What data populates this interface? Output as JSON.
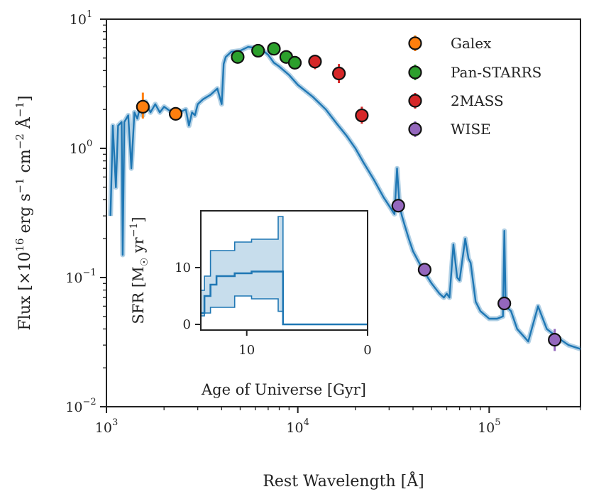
{
  "chart_data": [
    {
      "type": "line",
      "title": "",
      "xlabel": "Rest Wavelength [Å]",
      "ylabel": "Flux [×10^16 erg s^-1 cm^-2 Å^-1]",
      "xscale": "log",
      "yscale": "log",
      "xlim": [
        1000,
        300000
      ],
      "ylim": [
        0.01,
        10
      ],
      "x_ticks": [
        {
          "base": "10",
          "exp": "3",
          "value": 1000
        },
        {
          "base": "10",
          "exp": "4",
          "value": 10000
        },
        {
          "base": "10",
          "exp": "5",
          "value": 100000
        }
      ],
      "y_ticks": [
        {
          "base": "10",
          "exp": "−2",
          "value": 0.01
        },
        {
          "base": "10",
          "exp": "−1",
          "value": 0.1
        },
        {
          "base": "10",
          "exp": "0",
          "value": 1
        },
        {
          "base": "10",
          "exp": "1",
          "value": 10
        }
      ],
      "model_color": "#1f77b4",
      "model_sed": {
        "x": [
          1050,
          1080,
          1120,
          1150,
          1200,
          1216,
          1240,
          1300,
          1350,
          1400,
          1450,
          1500,
          1550,
          1600,
          1700,
          1800,
          1900,
          2000,
          2200,
          2400,
          2600,
          2700,
          2800,
          2900,
          3000,
          3200,
          3500,
          3800,
          4000,
          4100,
          4200,
          4500,
          5000,
          5500,
          6000,
          6500,
          7000,
          7500,
          8000,
          9000,
          10000,
          12000,
          14000,
          16000,
          18000,
          20000,
          22000,
          25000,
          28000,
          30000,
          32000,
          33000,
          34000,
          35000,
          36000,
          38000,
          40000,
          45000,
          50000,
          55000,
          58000,
          60000,
          62000,
          65000,
          68000,
          70000,
          75000,
          78000,
          80000,
          85000,
          90000,
          100000,
          110000,
          118000,
          120000,
          122000,
          130000,
          140000,
          160000,
          180000,
          200000,
          230000,
          260000,
          300000
        ],
        "y": [
          0.3,
          1.5,
          0.5,
          1.5,
          1.6,
          0.15,
          1.6,
          1.8,
          0.7,
          1.9,
          1.7,
          2.1,
          1.8,
          2.3,
          1.9,
          2.2,
          1.9,
          2.1,
          1.9,
          1.9,
          2.0,
          1.5,
          1.9,
          1.8,
          2.2,
          2.4,
          2.6,
          2.9,
          2.2,
          4.5,
          5.1,
          5.6,
          5.7,
          6.1,
          6.0,
          5.8,
          5.3,
          4.6,
          4.3,
          3.7,
          3.1,
          2.5,
          2.0,
          1.55,
          1.25,
          1.0,
          0.78,
          0.57,
          0.42,
          0.36,
          0.31,
          0.7,
          0.36,
          0.3,
          0.26,
          0.2,
          0.16,
          0.115,
          0.09,
          0.075,
          0.07,
          0.075,
          0.07,
          0.18,
          0.1,
          0.095,
          0.2,
          0.14,
          0.13,
          0.065,
          0.055,
          0.048,
          0.048,
          0.05,
          0.23,
          0.06,
          0.055,
          0.04,
          0.032,
          0.06,
          0.04,
          0.034,
          0.03,
          0.028
        ]
      },
      "series": [
        {
          "name": "Galex",
          "color": "#ff7f0e",
          "x": [
            1550,
            2300
          ],
          "y": [
            2.1,
            1.85
          ],
          "err_low": [
            1.7,
            1.75
          ],
          "err_high": [
            2.7,
            1.95
          ]
        },
        {
          "name": "Pan-STARRS",
          "color": "#2ca02c",
          "x": [
            4850,
            6200,
            7500,
            8700,
            9650
          ],
          "y": [
            5.1,
            5.7,
            5.9,
            5.1,
            4.6
          ],
          "err_low": [
            4.95,
            5.55,
            5.75,
            4.95,
            4.45
          ],
          "err_high": [
            5.25,
            5.85,
            6.05,
            5.25,
            4.75
          ]
        },
        {
          "name": "2MASS",
          "color": "#d62728",
          "x": [
            12300,
            16400,
            21600
          ],
          "y": [
            4.7,
            3.8,
            1.8
          ],
          "err_low": [
            4.1,
            3.2,
            1.55
          ],
          "err_high": [
            5.3,
            4.5,
            2.1
          ]
        },
        {
          "name": "WISE",
          "color": "#9467bd",
          "x": [
            33500,
            46000,
            120000,
            220000
          ],
          "y": [
            0.36,
            0.115,
            0.063,
            0.033
          ],
          "err_low": [
            0.34,
            0.11,
            0.058,
            0.027
          ],
          "err_high": [
            0.38,
            0.12,
            0.068,
            0.04
          ]
        }
      ],
      "legend_position": "top-right"
    },
    {
      "type": "line",
      "title": "",
      "xlabel": "Age of Universe [Gyr]",
      "ylabel": "SFR [M☉ yr^-1]",
      "xlim": [
        13.8,
        0
      ],
      "ylim": [
        -1,
        20
      ],
      "x_ticks": [
        "10",
        "0"
      ],
      "x_tick_values": [
        10,
        0
      ],
      "y_ticks": [
        "0",
        "10"
      ],
      "y_tick_values": [
        0,
        10
      ],
      "median": {
        "x": [
          13.8,
          13.5,
          13.5,
          13.0,
          13.0,
          12.5,
          12.5,
          11.0,
          11.0,
          9.6,
          9.6,
          7.0,
          7.0,
          0.0
        ],
        "y": [
          2,
          2,
          5,
          5,
          7,
          7,
          8.5,
          8.5,
          9,
          9,
          9.3,
          9.3,
          0,
          0
        ]
      },
      "band_upper": {
        "x": [
          13.8,
          13.5,
          13.5,
          13.0,
          13.0,
          11.0,
          11.0,
          9.6,
          9.6,
          7.4,
          7.4,
          7.0,
          7.0
        ],
        "y": [
          6,
          6,
          8.5,
          8.5,
          13,
          13,
          14.5,
          14.5,
          15,
          15,
          19,
          19,
          0
        ]
      },
      "band_lower": {
        "x": [
          13.8,
          13.5,
          13.5,
          13.0,
          13.0,
          11.0,
          11.0,
          9.6,
          9.6,
          7.4,
          7.4,
          7.0,
          7.0
        ],
        "y": [
          1.5,
          1.5,
          2,
          2,
          3,
          3,
          5,
          5,
          4.5,
          4.5,
          2.3,
          2.3,
          0
        ]
      }
    }
  ],
  "legend": [
    {
      "label": "Galex"
    },
    {
      "label": "Pan-STARRS"
    },
    {
      "label": "2MASS"
    },
    {
      "label": "WISE"
    }
  ]
}
